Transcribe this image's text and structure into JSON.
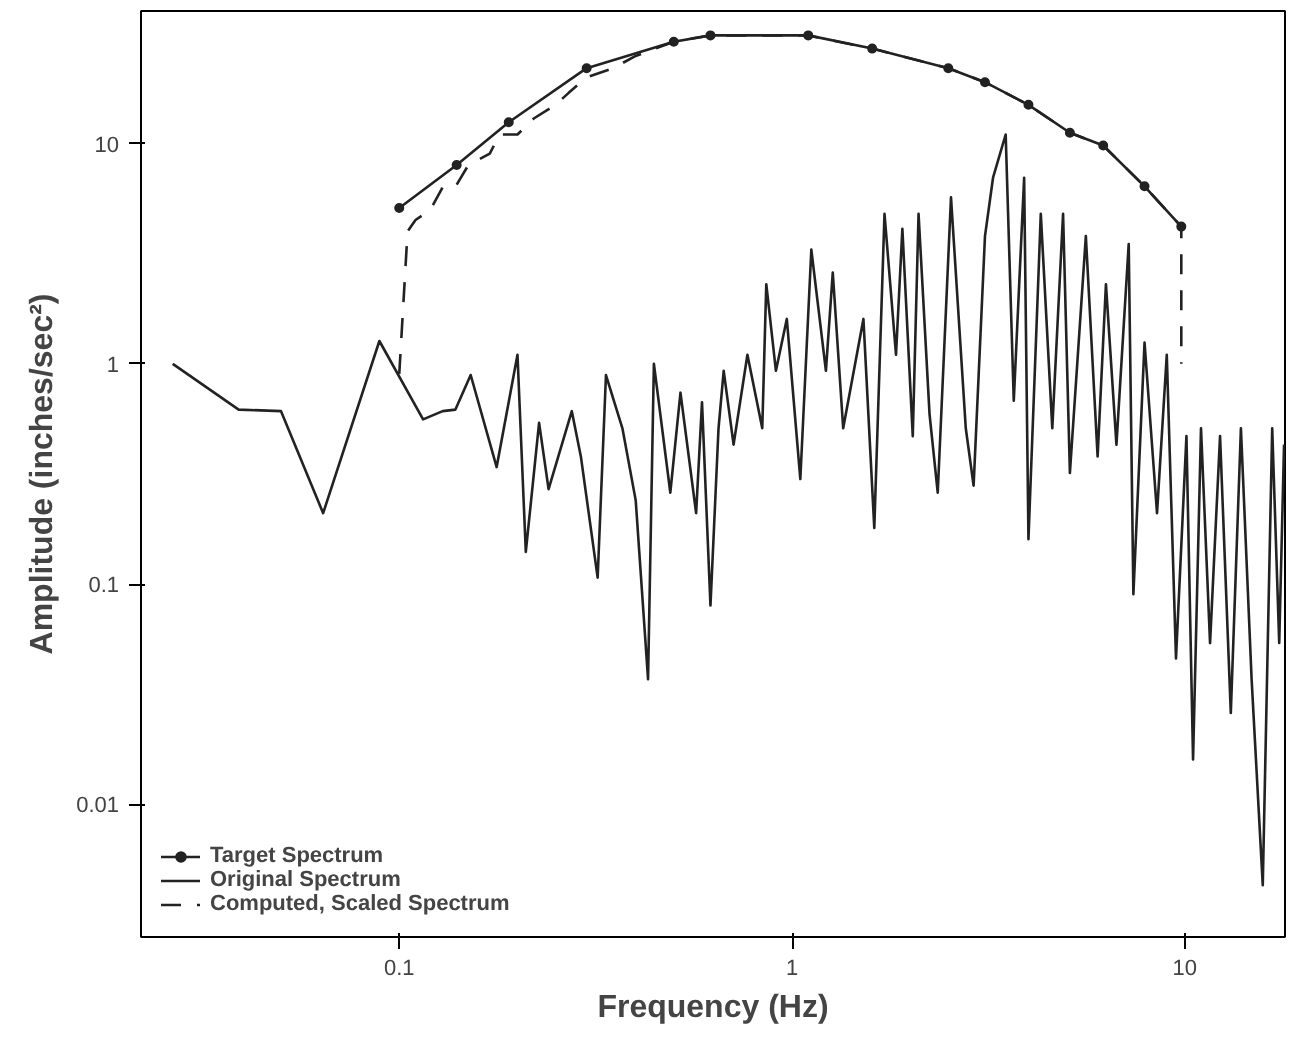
{
  "chart_data": {
    "type": "line",
    "xlabel": "Frequency (Hz)",
    "ylabel": "Amplitude (inches/sec²)",
    "log": "xy",
    "grid": false,
    "legend": "bottom left",
    "xlim": [
      0.022,
      18
    ],
    "xticks": [
      0.1,
      1,
      10
    ],
    "ylim": [
      0.0025,
      40
    ],
    "yticks": [
      0.01,
      0.1,
      1,
      10
    ],
    "series": [
      {
        "name": "Target Spectrum",
        "color": "#222222",
        "marker": "circle",
        "line_style": "solid",
        "x": [
          0.1,
          0.14,
          0.19,
          0.3,
          0.5,
          0.62,
          1.1,
          1.6,
          2.5,
          3.1,
          4.0,
          5.1,
          6.2,
          7.9,
          9.8
        ],
        "values": [
          5.1,
          8.0,
          12.5,
          22,
          29,
          31,
          31,
          27,
          22,
          19,
          15,
          11.2,
          9.8,
          6.4,
          4.2
        ]
      },
      {
        "name": "Original Spectrum",
        "color": "#222222",
        "marker": "none",
        "line_style": "solid",
        "x": [
          0.0265,
          0.039,
          0.05,
          0.064,
          0.089,
          0.115,
          0.129,
          0.139,
          0.152,
          0.177,
          0.2,
          0.21,
          0.227,
          0.24,
          0.275,
          0.29,
          0.32,
          0.336,
          0.37,
          0.4,
          0.43,
          0.445,
          0.49,
          0.52,
          0.57,
          0.59,
          0.62,
          0.65,
          0.67,
          0.71,
          0.77,
          0.84,
          0.86,
          0.91,
          0.97,
          1.05,
          1.12,
          1.22,
          1.27,
          1.35,
          1.52,
          1.62,
          1.72,
          1.84,
          1.91,
          2.03,
          2.1,
          2.24,
          2.35,
          2.54,
          2.77,
          2.9,
          3.1,
          3.25,
          3.5,
          3.67,
          3.9,
          4.0,
          4.3,
          4.6,
          4.9,
          5.1,
          5.6,
          6.0,
          6.3,
          6.7,
          7.2,
          7.4,
          7.9,
          8.5,
          9.0,
          9.5,
          10.1,
          10.5,
          11.0,
          11.6,
          12.3,
          13.1,
          13.9,
          14.8,
          15.8,
          16.7,
          17.4,
          17.9
        ],
        "values": [
          1.0,
          0.62,
          0.61,
          0.21,
          1.27,
          0.56,
          0.61,
          0.62,
          0.89,
          0.34,
          1.1,
          0.14,
          0.54,
          0.27,
          0.61,
          0.38,
          0.107,
          0.89,
          0.51,
          0.24,
          0.037,
          1.0,
          0.26,
          0.74,
          0.21,
          0.67,
          0.08,
          0.51,
          0.93,
          0.43,
          1.1,
          0.51,
          2.3,
          0.93,
          1.6,
          0.3,
          3.3,
          0.93,
          2.6,
          0.51,
          1.6,
          0.18,
          4.8,
          1.1,
          4.1,
          0.47,
          4.8,
          0.59,
          0.26,
          5.7,
          0.51,
          0.28,
          3.8,
          7.0,
          11,
          0.68,
          7.0,
          0.16,
          4.8,
          0.51,
          4.8,
          0.32,
          3.8,
          0.38,
          2.3,
          0.43,
          3.5,
          0.09,
          1.25,
          0.21,
          1.1,
          0.046,
          0.47,
          0.016,
          0.51,
          0.054,
          0.47,
          0.026,
          0.51,
          0.037,
          0.0043,
          0.51,
          0.054,
          0.43
        ]
      },
      {
        "name": "Computed, Scaled Spectrum",
        "color": "#222222",
        "marker": "none",
        "line_style": "dashed",
        "x": [
          0.1,
          0.105,
          0.11,
          0.12,
          0.13,
          0.14,
          0.15,
          0.17,
          0.18,
          0.2,
          0.22,
          0.25,
          0.27,
          0.3,
          0.35,
          0.4,
          0.5,
          0.62,
          1.1,
          1.6,
          2.5,
          3.1,
          4.0,
          5.1,
          6.2,
          7.9,
          9.8,
          9.8
        ],
        "values": [
          0.9,
          4.0,
          4.5,
          5,
          6.5,
          6.5,
          8,
          9,
          11,
          11,
          13,
          15,
          17,
          20,
          22,
          25,
          29,
          31,
          31,
          27,
          22,
          19,
          15,
          11.2,
          9.8,
          6.4,
          4.2,
          1.0
        ]
      }
    ]
  }
}
